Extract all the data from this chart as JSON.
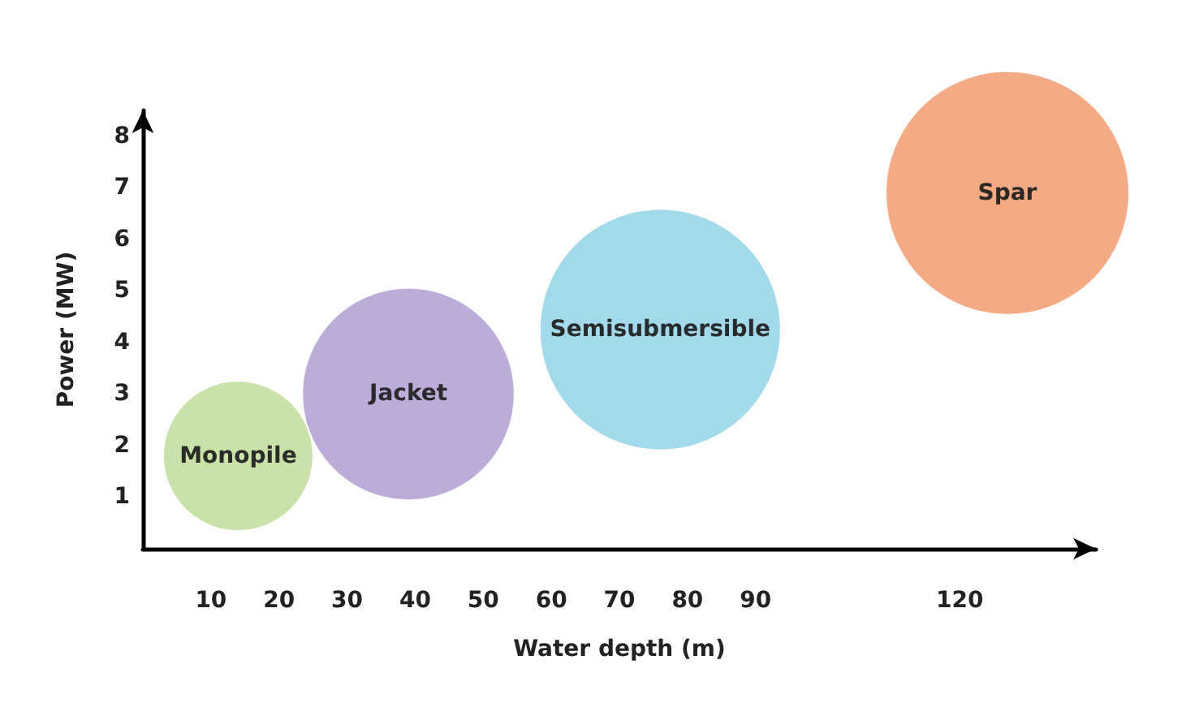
{
  "chart_data": {
    "type": "bubble",
    "xlabel": "Water depth (m)",
    "ylabel": "Power (MW)",
    "xlim": [
      0,
      140
    ],
    "xticks": [
      10,
      20,
      30,
      40,
      50,
      60,
      70,
      80,
      90,
      120
    ],
    "ylim": [
      0,
      8.5
    ],
    "yticks": [
      1,
      2,
      3,
      4,
      5,
      6,
      7,
      8
    ],
    "grid": false,
    "series": [
      {
        "name": "Monopile",
        "color": "#c6e0a4",
        "x": [
          14
        ],
        "values": [
          1.8
        ],
        "sizes": [
          0.38
        ]
      },
      {
        "name": "Jacket",
        "color": "#b8a8d8",
        "x": [
          39
        ],
        "values": [
          3
        ],
        "sizes": [
          0.76
        ]
      },
      {
        "name": "Semisubmersible",
        "color": "#9dd7ea",
        "x": [
          76
        ],
        "values": [
          4.25
        ],
        "sizes": [
          0.98
        ]
      },
      {
        "name": "Spar",
        "color": "#f4a57f",
        "x": [
          127
        ],
        "values": [
          6.9
        ],
        "sizes": [
          1
        ]
      }
    ]
  }
}
